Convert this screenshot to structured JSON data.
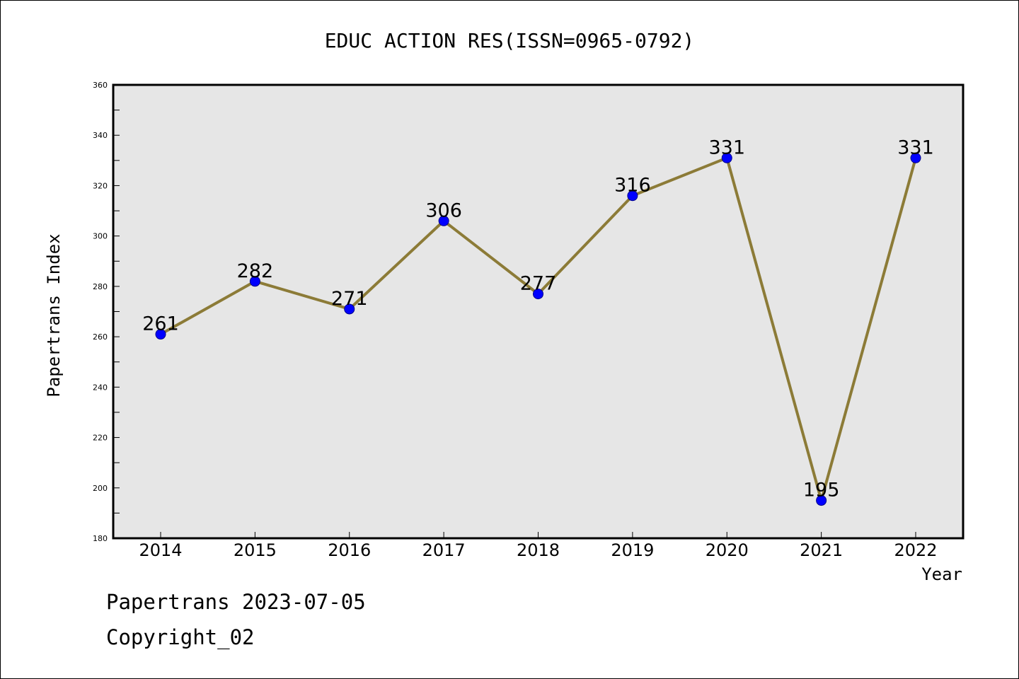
{
  "chart_data": {
    "type": "line",
    "title": "EDUC ACTION RES(ISSN=0965-0792)",
    "xlabel": "Year",
    "ylabel": "Papertrans Index",
    "categories": [
      "2014",
      "2015",
      "2016",
      "2017",
      "2018",
      "2019",
      "2020",
      "2021",
      "2022"
    ],
    "series": [
      {
        "values": [
          261,
          282,
          271,
          306,
          277,
          316,
          331,
          195,
          331
        ]
      }
    ],
    "data_labels": [
      "261",
      "282",
      "271",
      "306",
      "277",
      "316",
      "331",
      "195",
      "331"
    ],
    "ylim": [
      180,
      360
    ],
    "yticks": [
      180,
      200,
      220,
      240,
      260,
      280,
      300,
      320,
      340,
      360
    ],
    "ytick_labels": [
      "180",
      "200",
      "220",
      "240",
      "260",
      "280",
      "300",
      "320",
      "340",
      "360"
    ],
    "grid": false,
    "colors": {
      "line": "#8c7b37",
      "marker": "#0000ff",
      "plot_background": "#e6e6e6"
    }
  },
  "footer": {
    "line1": "Papertrans 2023-07-05",
    "line2": "Copyright_02"
  }
}
